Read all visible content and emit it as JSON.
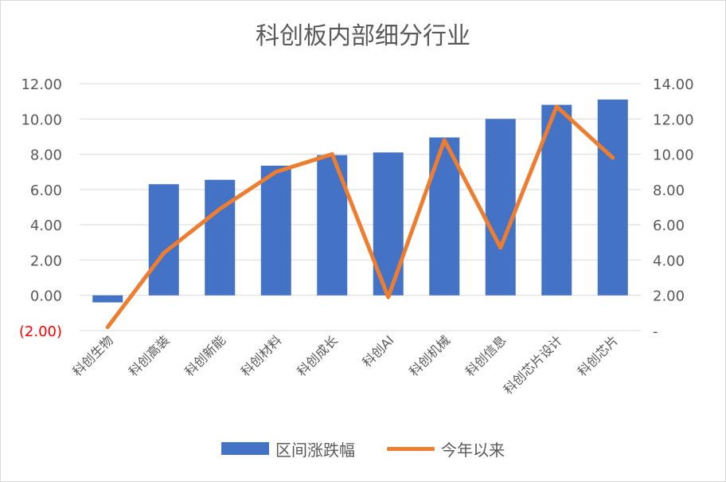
{
  "chart_data": {
    "type": "bar+line",
    "title": "科创板内部细分行业",
    "categories": [
      "科创生物",
      "科创高装",
      "科创新能",
      "科创材料",
      "科创成长",
      "科创AI",
      "科创机械",
      "科创信息",
      "科创芯片设计",
      "科创芯片"
    ],
    "series": [
      {
        "name": "区间涨跌幅",
        "type": "bar",
        "axis": "left",
        "color": "#4472c4",
        "values": [
          -0.4,
          6.3,
          6.55,
          7.35,
          7.95,
          8.1,
          8.95,
          10.0,
          10.8,
          11.1
        ]
      },
      {
        "name": "今年以来",
        "type": "line",
        "axis": "right",
        "color": "#ed7d31",
        "values": [
          0.2,
          4.4,
          6.9,
          9.0,
          10.0,
          1.9,
          10.8,
          4.7,
          12.7,
          9.8
        ]
      }
    ],
    "left_axis": {
      "ylim": [
        -2,
        12
      ],
      "ticks": [
        -2,
        0,
        2,
        4,
        6,
        8,
        10,
        12
      ],
      "tick_labels": [
        "(2.00)",
        "0.00",
        "2.00",
        "4.00",
        "6.00",
        "8.00",
        "10.00",
        "12.00"
      ],
      "negative_color": "#ff0000"
    },
    "right_axis": {
      "ylim": [
        0,
        14
      ],
      "ticks": [
        0,
        2,
        4,
        6,
        8,
        10,
        12,
        14
      ],
      "tick_labels": [
        "-",
        "2.00",
        "4.00",
        "6.00",
        "8.00",
        "10.00",
        "12.00",
        "14.00"
      ]
    },
    "grid": true,
    "legend_position": "bottom"
  }
}
